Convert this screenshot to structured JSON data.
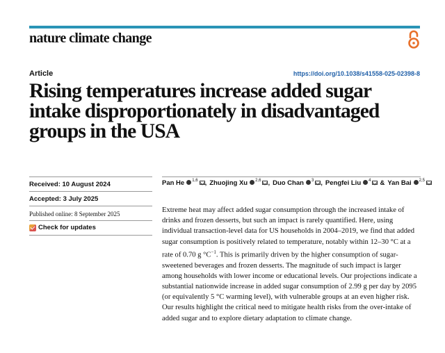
{
  "journal": "nature climate change",
  "article_type": "Article",
  "doi": "https://doi.org/10.1038/s41558-025-02398-8",
  "title": "Rising temperatures increase added sugar intake disproportionately in disadvantaged groups in the USA",
  "dates": {
    "received": "Received: 10 August 2024",
    "accepted": "Accepted: 3 July 2025",
    "published": "Published online: 8 September 2025"
  },
  "check_updates": "Check for updates",
  "authors": [
    {
      "name": "Pan He",
      "sup": "1,6",
      "sep": ","
    },
    {
      "name": "Zhuojing Xu",
      "sup": "2,6",
      "sep": ","
    },
    {
      "name": "Duo Chan",
      "sup": "3",
      "sep": ","
    },
    {
      "name": "Pengfei Liu",
      "sup": "4",
      "sep": "&"
    },
    {
      "name": "Yan Bai",
      "sup": "2,5",
      "sep": ""
    }
  ],
  "abstract": {
    "part1": "Extreme heat may affect added sugar consumption through the increased intake of drinks and frozen desserts, but such an impact is rarely quantified. Here, using individual transaction-level data for US households in 2004–2019, we find that added sugar consumption is positively related to temperature, notably within 12–30 °C at a rate of 0.70 g °C",
    "sup": "−1",
    "part2": ". This is primarily driven by the higher consumption of sugar-sweetened beverages and frozen desserts. The magnitude of such impact is larger among households with lower income or educational levels. Our projections indicate a substantial nationwide increase in added sugar consumption of 2.99 g per day by 2095 (or equivalently 5 °C warming level), with vulnerable groups at an even higher risk. Our results highlight the critical need to mitigate health risks from the over-intake of added sugar and to explore dietary adaptation to climate change."
  },
  "colors": {
    "accent_bar": "#2a94b6",
    "doi_link": "#1f5fa8",
    "open_access": "#e8702a"
  }
}
